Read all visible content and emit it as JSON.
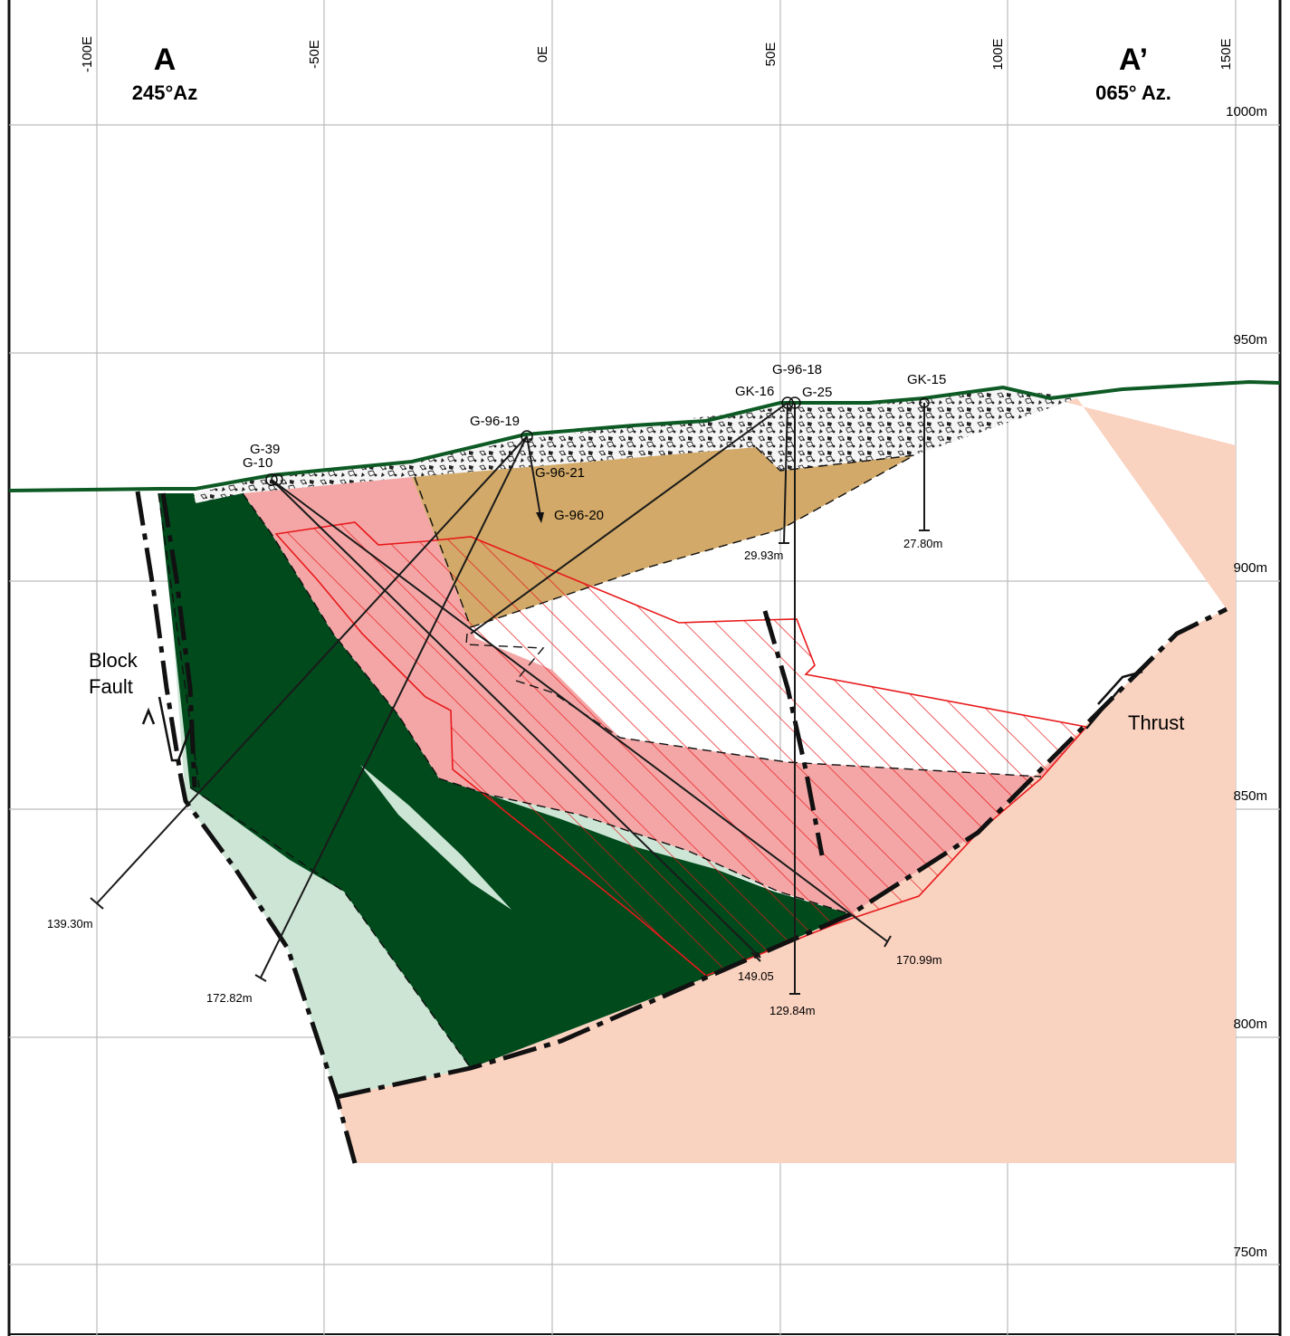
{
  "section": {
    "start_label": "A",
    "start_azimuth": "245°Az",
    "end_label": "A’",
    "end_azimuth": "065° Az."
  },
  "eastings": [
    "-100E",
    "-50E",
    "0E",
    "50E",
    "100E",
    "150E"
  ],
  "elevations": [
    "1000m",
    "950m",
    "900m",
    "850m",
    "800m",
    "750m"
  ],
  "drillholes": [
    {
      "id": "G-39",
      "depth": "172.82m"
    },
    {
      "id": "G-10",
      "depth": "170.99m"
    },
    {
      "id": "G-96-19",
      "depth": "139.30m"
    },
    {
      "id": "G-96-21",
      "depth": "149.05"
    },
    {
      "id": "G-96-20",
      "depth": ""
    },
    {
      "id": "GK-16",
      "depth": "29.93m"
    },
    {
      "id": "G-96-18",
      "depth": ""
    },
    {
      "id": "G-25",
      "depth": "129.84m"
    },
    {
      "id": "GK-15",
      "depth": "27.80m"
    }
  ],
  "structures": {
    "block_fault_line1": "Block",
    "block_fault_line2": "Fault",
    "thrust": "Thrust",
    "query": "?"
  },
  "colors": {
    "overburden": "#f4f4f4",
    "dark_green_unit": "#004a1c",
    "light_green_unit": "#cce5d4",
    "pink_unit": "#f4a6a6",
    "tan_unit": "#d2a968",
    "peach_unit": "#fad2c0",
    "hatched_zone": "#e8191b",
    "topography": "#0d5a24"
  }
}
